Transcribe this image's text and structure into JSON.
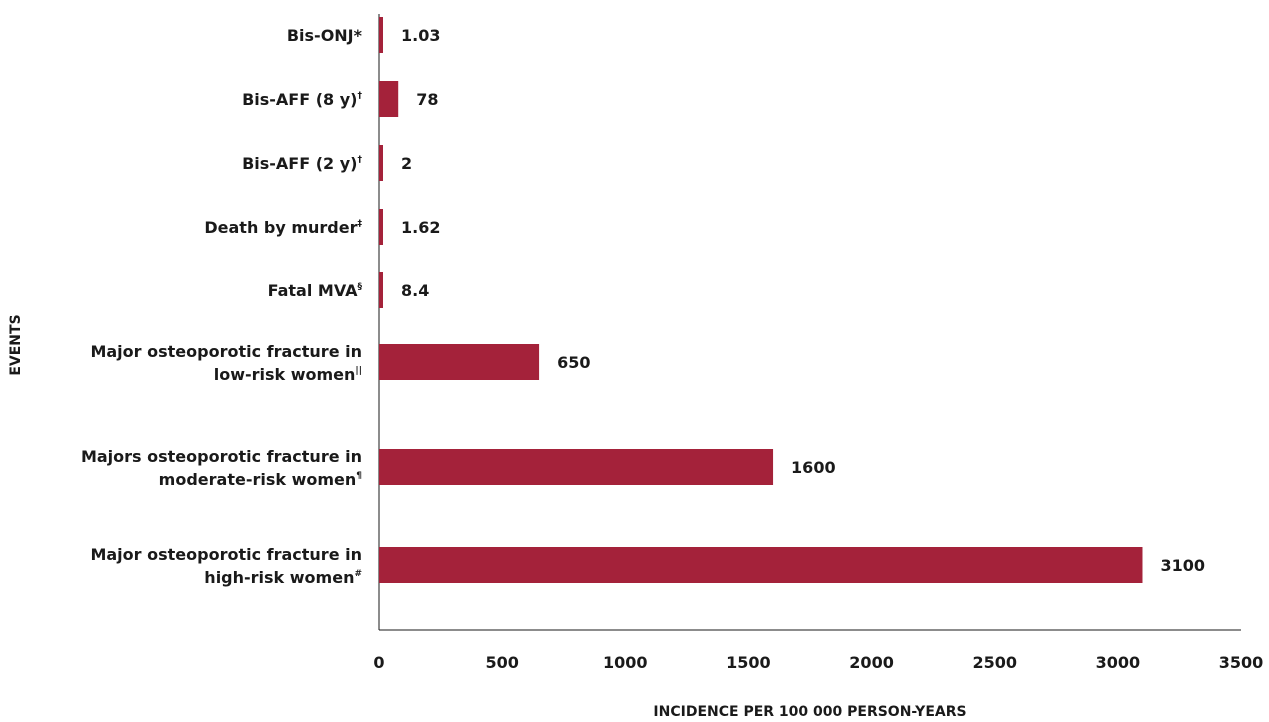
{
  "chart_data": {
    "type": "bar",
    "orientation": "horizontal",
    "title": "",
    "xlabel": "INCIDENCE PER 100 000 PERSON-YEARS",
    "ylabel": "EVENTS",
    "xlim": [
      0,
      3500
    ],
    "xticks": [
      "0",
      "500",
      "1000",
      "1500",
      "2000",
      "2500",
      "3000",
      "3500"
    ],
    "grid": false,
    "legend": "none",
    "bar_color": "#a4223a",
    "categories": [
      {
        "lines": [
          {
            "text": "Bis-ONJ*",
            "sup": ""
          }
        ]
      },
      {
        "lines": [
          {
            "text": "Bis-AFF (8 y)",
            "sup": "†"
          }
        ]
      },
      {
        "lines": [
          {
            "text": "Bis-AFF (2 y)",
            "sup": "†"
          }
        ]
      },
      {
        "lines": [
          {
            "text": "Death by murder",
            "sup": "‡"
          }
        ]
      },
      {
        "lines": [
          {
            "text": "Fatal MVA",
            "sup": "§"
          }
        ]
      },
      {
        "lines": [
          {
            "text": "Major osteoporotic fracture in",
            "sup": ""
          },
          {
            "text": "low-risk women",
            "sup": "||"
          }
        ]
      },
      {
        "lines": [
          {
            "text": "Majors osteoporotic fracture in",
            "sup": ""
          },
          {
            "text": "moderate-risk women",
            "sup": "¶"
          }
        ]
      },
      {
        "lines": [
          {
            "text": "Major osteoporotic fracture in",
            "sup": ""
          },
          {
            "text": "high-risk women",
            "sup": "#"
          }
        ]
      }
    ],
    "values": [
      1.03,
      78,
      2,
      1.62,
      8.4,
      650,
      1600,
      3100
    ],
    "value_labels": [
      "1.03",
      "78",
      "2",
      "1.62",
      "8.4",
      "650",
      "1600",
      "3100"
    ]
  }
}
